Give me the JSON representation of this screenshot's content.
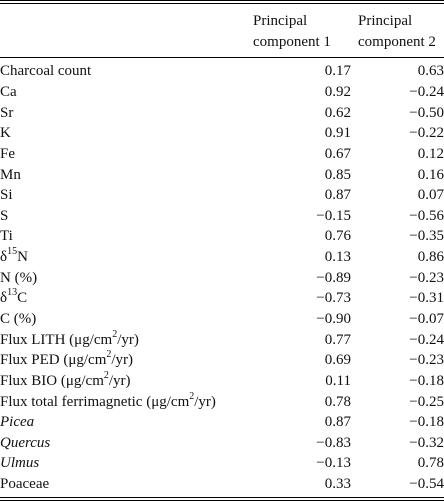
{
  "header": {
    "col1_line1": "Principal",
    "col1_line2": "component 1",
    "col2_line1": "Principal",
    "col2_line2": "component 2"
  },
  "rows": [
    {
      "label": "Charcoal count",
      "pc1": "0.17",
      "pc2": "0.63"
    },
    {
      "label": "Ca",
      "pc1": "0.92",
      "pc2": "−0.24"
    },
    {
      "label": "Sr",
      "pc1": "0.62",
      "pc2": "−0.50"
    },
    {
      "label": "K",
      "pc1": "0.91",
      "pc2": "−0.22"
    },
    {
      "label": "Fe",
      "pc1": "0.67",
      "pc2": "0.12"
    },
    {
      "label": "Mn",
      "pc1": "0.85",
      "pc2": "0.16"
    },
    {
      "label": "Si",
      "pc1": "0.87",
      "pc2": "0.07"
    },
    {
      "label": "S",
      "pc1": "−0.15",
      "pc2": "−0.56"
    },
    {
      "label": "Ti",
      "pc1": "0.76",
      "pc2": "−0.35"
    },
    {
      "label_pre": "δ",
      "label_sup": "15",
      "label_post": "N",
      "pc1": "0.13",
      "pc2": "0.86"
    },
    {
      "label": "N (%)",
      "pc1": "−0.89",
      "pc2": "−0.23"
    },
    {
      "label_pre": "δ",
      "label_sup": "13",
      "label_post": "C",
      "pc1": "−0.73",
      "pc2": "−0.31"
    },
    {
      "label": "C (%)",
      "pc1": "−0.90",
      "pc2": "−0.07"
    },
    {
      "label_pre": "Flux LITH (μg/cm",
      "label_sup": "2",
      "label_post": "/yr)",
      "pc1": "0.77",
      "pc2": "−0.24"
    },
    {
      "label_pre": "Flux PED (μg/cm",
      "label_sup": "2",
      "label_post": "/yr)",
      "pc1": "0.69",
      "pc2": "−0.23"
    },
    {
      "label_pre": "Flux BIO (μg/cm",
      "label_sup": "2",
      "label_post": "/yr)",
      "pc1": "0.11",
      "pc2": "−0.18"
    },
    {
      "label_pre": "Flux total ferrimagnetic (μg/cm",
      "label_sup": "2",
      "label_post": "/yr)",
      "pc1": "0.78",
      "pc2": "−0.25"
    },
    {
      "label": "Picea",
      "italic": true,
      "pc1": "0.87",
      "pc2": "−0.18"
    },
    {
      "label": "Quercus",
      "italic": true,
      "pc1": "−0.83",
      "pc2": "−0.32"
    },
    {
      "label": "Ulmus",
      "italic": true,
      "pc1": "−0.13",
      "pc2": "0.78"
    },
    {
      "label": "Poaceae",
      "pc1": "0.33",
      "pc2": "−0.54"
    }
  ]
}
